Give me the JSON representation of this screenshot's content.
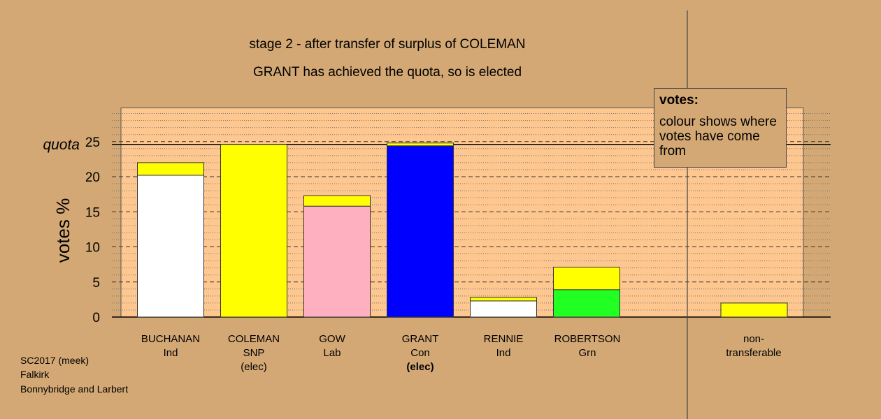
{
  "titles": {
    "line1": "stage 2 - after transfer of surplus of COLEMAN",
    "line2": "GRANT has achieved the quota, so is elected"
  },
  "legend": {
    "title": "votes:",
    "body": "colour shows where votes have come from"
  },
  "footer": {
    "line1": "SC2017 (meek)",
    "line2": "Falkirk",
    "line3": "Bonnybridge and Larbert"
  },
  "chart_data": {
    "type": "bar",
    "stacked": true,
    "ylabel": "votes %",
    "quota_label": "quota",
    "quota": 24.6,
    "ylim": [
      0,
      29.8
    ],
    "yticks": [
      0,
      5,
      10,
      15,
      20,
      25
    ],
    "bars": [
      {
        "name": "BUCHANAN",
        "party": "Ind",
        "status": "",
        "segments": [
          {
            "value": 20.2,
            "color": "#ffffff"
          },
          {
            "value": 1.8,
            "color": "#ffff00"
          }
        ]
      },
      {
        "name": "COLEMAN",
        "party": "SNP",
        "status": "(elec)",
        "segments": [
          {
            "value": 24.6,
            "color": "#ffff00"
          }
        ]
      },
      {
        "name": "GOW",
        "party": "Lab",
        "status": "",
        "segments": [
          {
            "value": 15.8,
            "color": "#ffb0c0"
          },
          {
            "value": 1.5,
            "color": "#ffff00"
          }
        ]
      },
      {
        "name": "GRANT",
        "party": "Con",
        "status": "(elec)",
        "segments": [
          {
            "value": 24.4,
            "color": "#0000ff"
          },
          {
            "value": 0.4,
            "color": "#ffff00"
          }
        ]
      },
      {
        "name": "RENNIE",
        "party": "Ind",
        "status": "",
        "segments": [
          {
            "value": 2.3,
            "color": "#ffffff"
          },
          {
            "value": 0.5,
            "color": "#ffff00"
          }
        ]
      },
      {
        "name": "ROBERTSON",
        "party": "Grn",
        "status": "",
        "segments": [
          {
            "value": 3.9,
            "color": "#22ff22"
          },
          {
            "value": 3.2,
            "color": "#ffff00"
          }
        ]
      }
    ],
    "nontransferable": {
      "label1": "non-",
      "label2": "transferable",
      "value": 2.0,
      "color": "#ffff00"
    }
  }
}
